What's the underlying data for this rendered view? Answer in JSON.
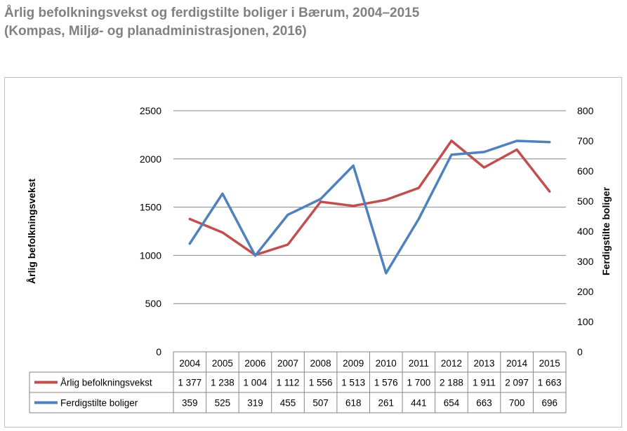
{
  "title": {
    "line1": "Årlig befolkningsvekst og ferdigstilte boliger i Bærum, 2004–2015",
    "line2": "(Kompas, Miljø- og planadministrasjonen, 2016)"
  },
  "chart_data": {
    "type": "line",
    "categories": [
      "2004",
      "2005",
      "2006",
      "2007",
      "2008",
      "2009",
      "2010",
      "2011",
      "2012",
      "2013",
      "2014",
      "2015"
    ],
    "series": [
      {
        "name": "Årlig befolkningsvekst",
        "axis": "left",
        "color": "#c0504d",
        "values": [
          1377,
          1238,
          1004,
          1112,
          1556,
          1513,
          1576,
          1700,
          2188,
          1911,
          2097,
          1663
        ],
        "labels": [
          "1 377",
          "1 238",
          "1 004",
          "1 112",
          "1 556",
          "1 513",
          "1 576",
          "1 700",
          "2 188",
          "1 911",
          "2 097",
          "1 663"
        ]
      },
      {
        "name": "Ferdigstilte boliger",
        "axis": "right",
        "color": "#4f81bd",
        "values": [
          359,
          525,
          319,
          455,
          507,
          618,
          261,
          441,
          654,
          663,
          700,
          696
        ],
        "labels": [
          "359",
          "525",
          "319",
          "455",
          "507",
          "618",
          "261",
          "441",
          "654",
          "663",
          "700",
          "696"
        ]
      }
    ],
    "ylabel": "Årlig befolkningsvekst",
    "y2label": "Ferdigstilte boliger",
    "ylim": [
      0,
      2500
    ],
    "y2lim": [
      0,
      800
    ],
    "yticks": [
      "0",
      "500",
      "1000",
      "1500",
      "2000",
      "2500"
    ],
    "y2ticks": [
      "0",
      "100",
      "200",
      "300",
      "400",
      "500",
      "600",
      "700",
      "800"
    ],
    "grid": true,
    "legend": "data-table-below"
  }
}
